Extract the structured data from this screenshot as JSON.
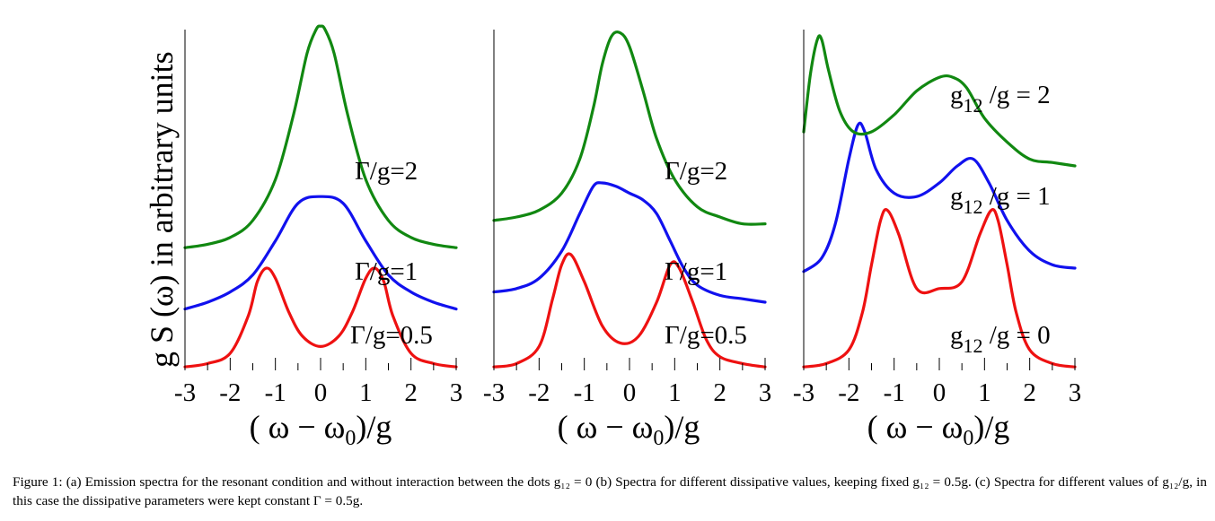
{
  "ylabel": "g S (ω)  in arbitrary units",
  "caption": "Figure 1:  (a) Emission spectra for the resonant condition and without interaction between the dots g₁₂ = 0 (b) Spectra for different dissipative values, keeping fixed g₁₂ = 0.5g. (c) Spectra for different values of g₁₂/g, in this case the dissipative parameters were kept constant Γ = 0.5g.",
  "colors": {
    "red": "#ee1111",
    "blue": "#1111ee",
    "green": "#118811"
  },
  "chart_data": [
    {
      "type": "line",
      "xlabel": "( ω −  ω0 )/g",
      "xlim": [
        -3,
        3
      ],
      "xticks": [
        "-3",
        "-2",
        "-1",
        "0",
        "1",
        "2",
        "3"
      ],
      "series": [
        {
          "name": "Γ/g=0.5",
          "color": "red",
          "x": [
            -3,
            -2.5,
            -2,
            -1.6,
            -1.4,
            -1.2,
            -1.0,
            -0.7,
            -0.4,
            0,
            0.4,
            0.7,
            1.0,
            1.2,
            1.4,
            1.6,
            2,
            2.5,
            3
          ],
          "y": [
            0.01,
            0.02,
            0.05,
            0.16,
            0.26,
            0.3,
            0.27,
            0.17,
            0.1,
            0.07,
            0.1,
            0.17,
            0.27,
            0.3,
            0.26,
            0.16,
            0.05,
            0.02,
            0.01
          ]
        },
        {
          "name": "Γ/g=1",
          "color": "blue",
          "x": [
            -3,
            -2.5,
            -2,
            -1.5,
            -1,
            -0.5,
            0,
            0.5,
            1,
            1.5,
            2,
            2.5,
            3
          ],
          "y": [
            0.18,
            0.2,
            0.23,
            0.28,
            0.38,
            0.49,
            0.51,
            0.49,
            0.38,
            0.28,
            0.23,
            0.2,
            0.18
          ]
        },
        {
          "name": "Γ/g=2",
          "color": "green",
          "x": [
            -3,
            -2.5,
            -2,
            -1.5,
            -1,
            -0.6,
            -0.3,
            -0.1,
            0,
            0.1,
            0.3,
            0.6,
            1,
            1.5,
            2,
            2.5,
            3
          ],
          "y": [
            0.36,
            0.37,
            0.39,
            0.44,
            0.56,
            0.75,
            0.93,
            1.0,
            1.01,
            1.0,
            0.93,
            0.75,
            0.56,
            0.44,
            0.39,
            0.37,
            0.36
          ]
        }
      ],
      "annotations": [
        "Γ/g=2",
        "Γ/g=1",
        "Γ/g=0.5"
      ]
    },
    {
      "type": "line",
      "xlabel": "( ω −  ω0 )/g",
      "xlim": [
        -3,
        3
      ],
      "xticks": [
        "-3",
        "-2",
        "-1",
        "0",
        "1",
        "2",
        "3"
      ],
      "series": [
        {
          "name": "Γ/g=0.5",
          "color": "red",
          "x": [
            -3,
            -2.5,
            -2,
            -1.7,
            -1.5,
            -1.3,
            -1.0,
            -0.6,
            -0.2,
            0.2,
            0.6,
            0.9,
            1.1,
            1.4,
            1.7,
            2,
            2.5,
            3
          ],
          "y": [
            0.01,
            0.02,
            0.07,
            0.21,
            0.31,
            0.34,
            0.26,
            0.13,
            0.08,
            0.1,
            0.2,
            0.31,
            0.3,
            0.2,
            0.09,
            0.04,
            0.02,
            0.01
          ]
        },
        {
          "name": "Γ/g=1",
          "color": "blue",
          "x": [
            -3,
            -2.5,
            -2,
            -1.5,
            -1.1,
            -0.8,
            -0.6,
            -0.3,
            0,
            0.3,
            0.6,
            0.9,
            1.2,
            1.5,
            2,
            2.5,
            3
          ],
          "y": [
            0.23,
            0.24,
            0.27,
            0.35,
            0.46,
            0.54,
            0.55,
            0.54,
            0.52,
            0.5,
            0.46,
            0.38,
            0.3,
            0.25,
            0.22,
            0.21,
            0.2
          ]
        },
        {
          "name": "Γ/g=2",
          "color": "green",
          "x": [
            -3,
            -2.5,
            -2,
            -1.5,
            -1.1,
            -0.8,
            -0.6,
            -0.4,
            -0.2,
            0,
            0.3,
            0.6,
            1,
            1.5,
            2,
            2.5,
            3
          ],
          "y": [
            0.44,
            0.45,
            0.47,
            0.52,
            0.62,
            0.77,
            0.9,
            0.98,
            0.99,
            0.95,
            0.82,
            0.68,
            0.56,
            0.48,
            0.45,
            0.43,
            0.43
          ]
        }
      ],
      "annotations": [
        "Γ/g=2",
        "Γ/g=1",
        "Γ/g=0.5"
      ]
    },
    {
      "type": "line",
      "xlabel": "( ω −  ω0 )/g",
      "xlim": [
        -3,
        3
      ],
      "xticks": [
        "-3",
        "-2",
        "-1",
        "0",
        "1",
        "2",
        "3"
      ],
      "series": [
        {
          "name": "g12 /g = 0",
          "color": "red",
          "x": [
            -3,
            -2.5,
            -2,
            -1.7,
            -1.5,
            -1.3,
            -1.15,
            -0.9,
            -0.5,
            0,
            0.5,
            0.9,
            1.15,
            1.3,
            1.5,
            1.7,
            2,
            2.5,
            3
          ],
          "y": [
            0.01,
            0.02,
            0.06,
            0.17,
            0.31,
            0.44,
            0.47,
            0.4,
            0.24,
            0.24,
            0.26,
            0.4,
            0.47,
            0.44,
            0.31,
            0.17,
            0.06,
            0.02,
            0.01
          ]
        },
        {
          "name": "g12 /g = 1",
          "color": "blue",
          "x": [
            -3,
            -2.6,
            -2.3,
            -2.0,
            -1.8,
            -1.65,
            -1.4,
            -1,
            -0.5,
            0,
            0.4,
            0.75,
            1.1,
            1.5,
            2,
            2.5,
            3
          ],
          "y": [
            0.29,
            0.33,
            0.43,
            0.62,
            0.72,
            0.7,
            0.59,
            0.52,
            0.51,
            0.55,
            0.6,
            0.62,
            0.55,
            0.44,
            0.35,
            0.31,
            0.3
          ]
        },
        {
          "name": "g12 /g = 2",
          "color": "green",
          "x": [
            -3,
            -2.85,
            -2.7,
            -2.6,
            -2.45,
            -2.2,
            -1.9,
            -1.5,
            -1,
            -0.5,
            0,
            0.3,
            0.6,
            1,
            1.5,
            2,
            2.5,
            3
          ],
          "y": [
            0.7,
            0.87,
            0.97,
            0.97,
            0.88,
            0.76,
            0.7,
            0.7,
            0.75,
            0.82,
            0.86,
            0.86,
            0.83,
            0.74,
            0.67,
            0.62,
            0.61,
            0.6
          ]
        }
      ],
      "annotations": [
        "g12 /g = 2",
        "g12 /g = 1",
        "g12 /g = 0"
      ]
    }
  ]
}
